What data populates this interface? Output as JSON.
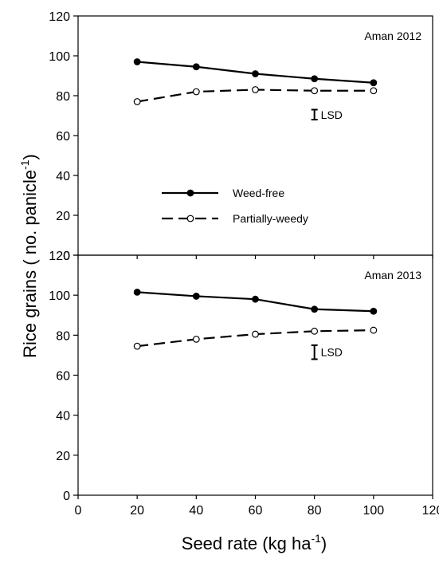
{
  "chart_data": [
    {
      "type": "line",
      "panel_label": "Aman 2012",
      "x": [
        20,
        40,
        60,
        80,
        100
      ],
      "series": [
        {
          "name": "Weed-free",
          "values": [
            97,
            94.5,
            91,
            88.5,
            86.5
          ],
          "marker": "filled-circle",
          "line": "solid"
        },
        {
          "name": "Partially-weedy",
          "values": [
            77,
            82,
            83,
            82.5,
            82.5
          ],
          "marker": "open-circle",
          "line": "dashed"
        }
      ],
      "lsd": {
        "label": "LSD",
        "x": 80,
        "y_low": 68,
        "y_high": 73
      },
      "xlim": [
        0,
        120
      ],
      "ylim": [
        0,
        120
      ],
      "yticks": [
        "0",
        "20",
        "40",
        "60",
        "80",
        "100",
        "120"
      ],
      "legend_placement": "center-left",
      "grid": false
    },
    {
      "type": "line",
      "panel_label": "Aman 2013",
      "x": [
        20,
        40,
        60,
        80,
        100
      ],
      "series": [
        {
          "name": "Weed-free",
          "values": [
            101.5,
            99.5,
            98,
            93,
            92
          ],
          "marker": "filled-circle",
          "line": "solid"
        },
        {
          "name": "Partially-weedy",
          "values": [
            74.5,
            78,
            80.5,
            82,
            82.5
          ],
          "marker": "open-circle",
          "line": "dashed"
        }
      ],
      "lsd": {
        "label": "LSD",
        "x": 80,
        "y_low": 68,
        "y_high": 75
      },
      "xlim": [
        0,
        120
      ],
      "ylim": [
        0,
        120
      ],
      "yticks": [
        "0",
        "20",
        "40",
        "60",
        "80",
        "100",
        "120"
      ],
      "xticks": [
        "0",
        "20",
        "40",
        "60",
        "80",
        "100",
        "120"
      ],
      "grid": false
    }
  ],
  "ylabel": {
    "main": "Rice grains ( no. panicle",
    "sup": "-1",
    "tail": ")"
  },
  "xlabel": {
    "main": "Seed rate (kg ha",
    "sup": "-1",
    "tail": ")"
  }
}
